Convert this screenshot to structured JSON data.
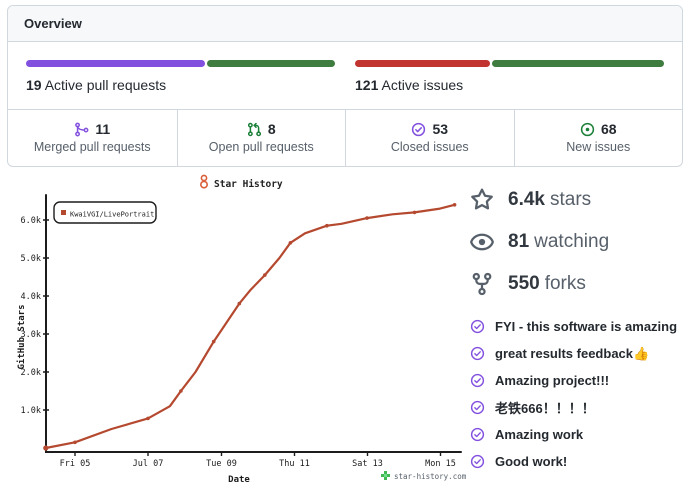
{
  "colors": {
    "accent_purple": "#8250df",
    "pr_green": "#3e7d3f",
    "issue_red": "#c13430",
    "stat_green": "#1a7f37",
    "curve_red": "#b5492f",
    "icon_gray": "#57606a",
    "watermark_green": "#3fb950",
    "logo_orange": "#d9603b"
  },
  "overview_card": {
    "title": "Overview",
    "pull_requests": {
      "count": "19",
      "label": "Active pull requests",
      "bar": {
        "left_pct": 57.9,
        "left_color": "#8250df",
        "right_color": "#3e7d3f"
      }
    },
    "issues": {
      "count": "121",
      "label": "Active issues",
      "bar": {
        "left_pct": 43.8,
        "left_color": "#c13430",
        "right_color": "#3e7d3f"
      }
    },
    "stats": [
      {
        "icon": "git-merge",
        "color": "#8250df",
        "count": "11",
        "label": "Merged pull requests"
      },
      {
        "icon": "git-pull-request",
        "color": "#1a7f37",
        "count": "8",
        "label": "Open pull requests"
      },
      {
        "icon": "issue-closed",
        "color": "#8250df",
        "count": "53",
        "label": "Closed issues"
      },
      {
        "icon": "issue-opened",
        "color": "#1a7f37",
        "count": "68",
        "label": "New issues"
      }
    ]
  },
  "chart_data": {
    "type": "line",
    "title": "Star History",
    "xlabel": "Date",
    "ylabel": "GitHub Stars",
    "watermark": "star-history.com",
    "x_tick_labels": [
      "Fri 05",
      "Jul 07",
      "Tue 09",
      "Thu 11",
      "Sat 13",
      "Mon 15"
    ],
    "y_tick_labels": [
      "1.0k",
      "2.0k",
      "3.0k",
      "4.0k",
      "5.0k",
      "6.0k"
    ],
    "ylim": [
      0,
      6600
    ],
    "grid": false,
    "legend_position": "top-left",
    "series": [
      {
        "name": "KwaiVGI/LivePortrait",
        "color": "#b5492f",
        "x_days_july": [
          4.2,
          5,
          6,
          7,
          7.6,
          7.9,
          8.3,
          8.8,
          9.15,
          9.5,
          9.8,
          10.2,
          10.6,
          10.9,
          11.3,
          11.9,
          12.3,
          13,
          13.7,
          14.3,
          15,
          15.4
        ],
        "values": [
          0,
          150,
          500,
          780,
          1100,
          1500,
          2000,
          2800,
          3300,
          3800,
          4150,
          4550,
          5000,
          5400,
          5650,
          5850,
          5900,
          6050,
          6150,
          6200,
          6300,
          6400
        ]
      }
    ]
  },
  "repo_stats": [
    {
      "icon": "star",
      "value": "6.4k",
      "label": "stars"
    },
    {
      "icon": "eye",
      "value": "81",
      "label": "watching"
    },
    {
      "icon": "fork",
      "value": "550",
      "label": "forks"
    }
  ],
  "comments": [
    "FYI - this software is amazing",
    "great results feedback👍",
    "Amazing project!!!",
    "老铁666！！！！",
    "Amazing work",
    "Good work!"
  ]
}
